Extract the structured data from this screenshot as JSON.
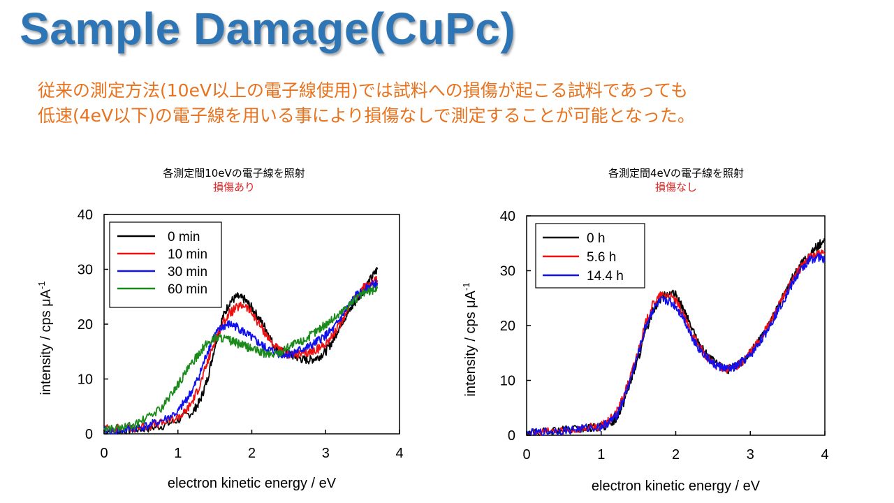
{
  "slide": {
    "title": "Sample Damage(CuPc)",
    "desc_line1": "従来の測定方法(10eV以上の電子線使用)では試料への損傷が起こる試料であっても",
    "desc_line2": "低速(4eV以下)の電子線を用いる事により損傷なしで測定することが可能となった。"
  },
  "colors": {
    "title": "#2e75b6",
    "desc": "#e8731f",
    "black": "#000000",
    "red": "#ee1111",
    "blue": "#1111ee",
    "green": "#1a8a1a"
  },
  "chart_data": [
    {
      "type": "line",
      "caption_line1": "各測定間10eVの電子線を照射",
      "caption_line2": "損傷あり",
      "xlabel": "electron kinetic energy / eV",
      "ylabel": "intensity / cps μA",
      "ylabel_sup": "-1",
      "xlim": [
        0,
        4
      ],
      "ylim": [
        0,
        40
      ],
      "xticks": [
        "0",
        "1",
        "2",
        "3",
        "4"
      ],
      "yticks": [
        "0",
        "10",
        "20",
        "30",
        "40"
      ],
      "legend_position": "top-left",
      "grid": false,
      "series": [
        {
          "name": "0 min",
          "color": "#000000",
          "x": [
            0,
            0.2,
            0.4,
            0.6,
            0.8,
            1.0,
            1.2,
            1.3,
            1.4,
            1.5,
            1.6,
            1.7,
            1.8,
            1.9,
            2.0,
            2.1,
            2.2,
            2.3,
            2.4,
            2.5,
            2.6,
            2.7,
            2.8,
            2.9,
            3.0,
            3.1,
            3.2,
            3.3,
            3.4,
            3.5,
            3.6,
            3.7
          ],
          "y": [
            0.5,
            0.5,
            0.8,
            1.0,
            1.5,
            2.5,
            4,
            6,
            10,
            16,
            21,
            24,
            25,
            24.5,
            23,
            21,
            19,
            16,
            15,
            14.5,
            14,
            13.5,
            13.5,
            14,
            15,
            17,
            20,
            22,
            24,
            26,
            28,
            30
          ]
        },
        {
          "name": "10 min",
          "color": "#ee1111",
          "x": [
            0,
            0.2,
            0.4,
            0.6,
            0.8,
            1.0,
            1.1,
            1.2,
            1.3,
            1.4,
            1.5,
            1.6,
            1.7,
            1.8,
            1.9,
            2.0,
            2.1,
            2.2,
            2.3,
            2.4,
            2.5,
            2.6,
            2.7,
            2.8,
            2.9,
            3.0,
            3.1,
            3.2,
            3.3,
            3.4,
            3.5,
            3.6,
            3.7
          ],
          "y": [
            1,
            1,
            1,
            1.5,
            2,
            3,
            4,
            6,
            9,
            13,
            17,
            20,
            22,
            23,
            23.5,
            22,
            20,
            18,
            16,
            15,
            14.5,
            14.5,
            14.5,
            15,
            15.5,
            16.5,
            18,
            20,
            23,
            25,
            26.5,
            27.5,
            28
          ]
        },
        {
          "name": "30 min",
          "color": "#1111ee",
          "x": [
            0,
            0.2,
            0.4,
            0.6,
            0.8,
            1.0,
            1.1,
            1.2,
            1.3,
            1.4,
            1.5,
            1.6,
            1.7,
            1.8,
            1.9,
            2.0,
            2.1,
            2.2,
            2.3,
            2.4,
            2.5,
            2.6,
            2.7,
            2.8,
            2.9,
            3.0,
            3.1,
            3.2,
            3.3,
            3.4,
            3.5,
            3.6,
            3.7
          ],
          "y": [
            0.5,
            0.5,
            1,
            1.5,
            2.5,
            4,
            6,
            8,
            11,
            15,
            18,
            19.5,
            20,
            19.5,
            18.5,
            17.5,
            16.5,
            15.5,
            15,
            14.5,
            14.5,
            15,
            15.5,
            16,
            17,
            18,
            19,
            21,
            23,
            25,
            26,
            27,
            27.5
          ]
        },
        {
          "name": "60 min",
          "color": "#1a8a1a",
          "x": [
            0,
            0.2,
            0.4,
            0.6,
            0.8,
            0.9,
            1.0,
            1.1,
            1.2,
            1.3,
            1.4,
            1.5,
            1.6,
            1.7,
            1.8,
            1.9,
            2.0,
            2.1,
            2.2,
            2.3,
            2.4,
            2.5,
            2.6,
            2.7,
            2.8,
            2.9,
            3.0,
            3.1,
            3.2,
            3.3,
            3.4,
            3.5,
            3.6,
            3.7
          ],
          "y": [
            1,
            1,
            1.5,
            3,
            5,
            7,
            9,
            11,
            13,
            15,
            16.5,
            17.5,
            17.5,
            17,
            16.5,
            16,
            15.5,
            15,
            14.5,
            14.5,
            15,
            16,
            16.5,
            17,
            18,
            19,
            20,
            21,
            22,
            23.5,
            24.5,
            25.5,
            26,
            26.5
          ]
        }
      ]
    },
    {
      "type": "line",
      "caption_line1": "各測定間4eVの電子線を照射",
      "caption_line2": "損傷なし",
      "xlabel": "electron kinetic energy / eV",
      "ylabel": "intensity / cps μA",
      "ylabel_sup": "-1",
      "xlim": [
        0,
        4
      ],
      "ylim": [
        0,
        40
      ],
      "xticks": [
        "0",
        "1",
        "2",
        "3",
        "4"
      ],
      "yticks": [
        "0",
        "10",
        "20",
        "30",
        "40"
      ],
      "legend_position": "top-left",
      "grid": false,
      "series": [
        {
          "name": "0 h",
          "color": "#000000",
          "x": [
            0,
            0.2,
            0.4,
            0.6,
            0.8,
            1.0,
            1.1,
            1.2,
            1.3,
            1.4,
            1.5,
            1.6,
            1.7,
            1.8,
            1.9,
            2.0,
            2.1,
            2.2,
            2.3,
            2.4,
            2.5,
            2.6,
            2.7,
            2.8,
            2.9,
            3.0,
            3.1,
            3.2,
            3.3,
            3.4,
            3.5,
            3.6,
            3.7,
            3.8,
            3.9,
            4.0
          ],
          "y": [
            0.3,
            0.5,
            0.8,
            1,
            1.2,
            1.5,
            2,
            3,
            6,
            10,
            14,
            19,
            23,
            25,
            26,
            25.5,
            23,
            20,
            17,
            15,
            13.5,
            12.5,
            12,
            12.5,
            13.5,
            15,
            17,
            19,
            21.5,
            24,
            27,
            29.5,
            31.5,
            33,
            34.5,
            35.5
          ]
        },
        {
          "name": "5.6 h",
          "color": "#ee1111",
          "x": [
            0,
            0.2,
            0.4,
            0.6,
            0.8,
            1.0,
            1.1,
            1.2,
            1.3,
            1.4,
            1.5,
            1.6,
            1.7,
            1.8,
            1.9,
            2.0,
            2.1,
            2.2,
            2.3,
            2.4,
            2.5,
            2.6,
            2.7,
            2.8,
            2.9,
            3.0,
            3.1,
            3.2,
            3.3,
            3.4,
            3.5,
            3.6,
            3.7,
            3.8,
            3.9,
            4.0
          ],
          "y": [
            0.3,
            0.5,
            0.8,
            1,
            1.3,
            1.7,
            2.5,
            4,
            7,
            11,
            15.5,
            20.5,
            24,
            25.5,
            25.5,
            24.5,
            22,
            19,
            16.5,
            14.5,
            13,
            12.5,
            12,
            12.5,
            13.5,
            15,
            17,
            19,
            21.5,
            24,
            26.5,
            29,
            31,
            32.5,
            33,
            33
          ]
        },
        {
          "name": "14.4 h",
          "color": "#1111ee",
          "x": [
            0,
            0.2,
            0.4,
            0.6,
            0.8,
            1.0,
            1.1,
            1.2,
            1.3,
            1.4,
            1.5,
            1.6,
            1.7,
            1.8,
            1.9,
            2.0,
            2.1,
            2.2,
            2.3,
            2.4,
            2.5,
            2.6,
            2.7,
            2.8,
            2.9,
            3.0,
            3.1,
            3.2,
            3.3,
            3.4,
            3.5,
            3.6,
            3.7,
            3.8,
            3.9,
            4.0
          ],
          "y": [
            0.3,
            0.5,
            0.8,
            1,
            1.3,
            1.6,
            2.3,
            3.5,
            6.5,
            10.5,
            15,
            20,
            23,
            24.5,
            24.5,
            23.5,
            21.5,
            18.5,
            16,
            14.5,
            13,
            12.5,
            12,
            12.5,
            13.5,
            14.5,
            16.5,
            18.5,
            21,
            23.5,
            26,
            28.5,
            30.5,
            32,
            32.5,
            32
          ]
        }
      ]
    }
  ]
}
